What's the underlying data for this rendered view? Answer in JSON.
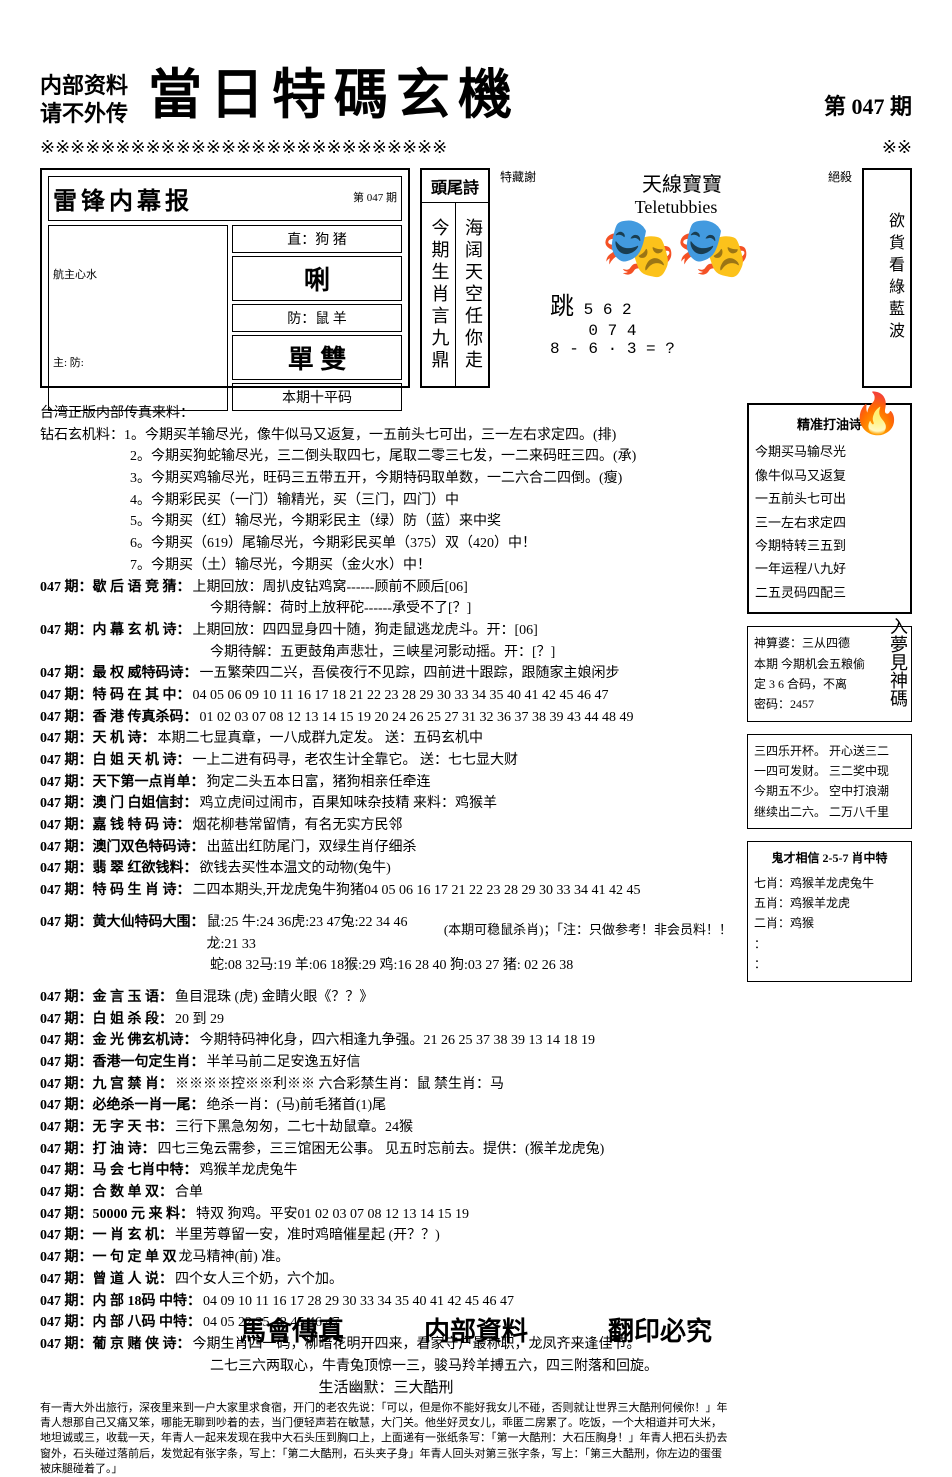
{
  "header": {
    "left_line1": "内部资料",
    "left_line2": "请不外传",
    "title": "當日特碼玄機",
    "issue": "第 047 期",
    "divider": "※※※※※※※※※※※※※※※※※※※※※※※※※※※",
    "divider_right": "※※"
  },
  "newspaper": {
    "title": "雷锋内幕报",
    "issue_label": "第\n047\n期",
    "big_char": "唎",
    "sub1": "直：狗   猪",
    "sub2": "防：鼠   羊",
    "double": "單 雙",
    "left_row1": "航主心水",
    "left_row2": "主:        防:",
    "bottom": "本期十平码"
  },
  "poem": {
    "title": "頭尾詩",
    "col1": "今期生肖言九鼎",
    "col2": "海阔天空任你走"
  },
  "teletubbies": {
    "top1": "特藏謝",
    "top2": "天線寶寶",
    "brand": "Teletubbies",
    "nums_label": "跳",
    "nums1": "5 6 2",
    "nums2": "0 7 4",
    "nums3": "8 - 6 · 3 = ?",
    "side": "絕殺",
    "right_vertical": "欲貨看綠藍波"
  },
  "source": "台湾正版内部传真来料：",
  "diamond_label": "钻石玄机料：",
  "diamond": [
    "1。今期买羊输尽光，像牛似马又返复，一五前头七可出，三一左右求定四。(排)",
    "2。今期买狗蛇输尽光，三二倒头取四七，尾取二零三七发，一二来码旺三四。(承)",
    "3。今期买鸡输尽光，旺码三五带五开，今期特码取单数，一二六合二四倒。(瘦)",
    "4。今期彩民买（一门）输精光，买（三门，四门）中",
    "5。今期买（红）输尽光，今期彩民主（绿）防（蓝）来中奖",
    "6。今期买（619）尾输尽光，今期彩民买单（375）双（420）中！",
    "7。今期买（土）输尽光，今期买（金火水）中！"
  ],
  "entries": [
    {
      "prefix": "047 期：歇 后 语 竞 猜：",
      "text": "上期回放：周扒皮钻鸡窝------顾前不顾后[06]"
    },
    {
      "prefix": "",
      "text": "今期待解：荷时上放秤砣------承受不了[？]"
    },
    {
      "prefix": "047 期：内 幕 玄 机 诗：",
      "text": "上期回放：四四显身四十随，狗走鼠逃龙虎斗。开：[06]"
    },
    {
      "prefix": "",
      "text": "今期待解：五更鼓角声悲壮，三峡星河影动摇。开：[？]"
    },
    {
      "prefix": "047 期：最 权 威特码诗：",
      "text": "一五繁荣四二兴，吾侯夜行不见踪，四前进十跟踪，跟随家主娘闲步"
    },
    {
      "prefix": "047 期：特 码 在 其 中：",
      "text": "04 05 06 09 10 11 16 17 18 21 22 23 28 29 30 33 34 35 40 41 42 45 46 47"
    },
    {
      "prefix": "047 期：香 港 传真杀码：",
      "text": "01 02 03 07 08 12 13 14 15 19 20 24 26 25 27 31 32 36 37 38 39 43 44 48 49"
    },
    {
      "prefix": "047 期：天    机    诗：",
      "text": "本期二七显真章，一八成群九定发。 送：五码玄机中"
    },
    {
      "prefix": "047 期：白 姐 天 机 诗：",
      "text": "一上二进有码寻，老农生计全靠它。 送：七七显大财"
    },
    {
      "prefix": "047 期：天下第一点肖单：",
      "text": "狗定二头五本日富，猪狗相亲任牵连"
    },
    {
      "prefix": "047 期：澳 门 白姐信封：",
      "text": "鸡立虎间过闹市，百果知味杂技精   来料：鸡猴羊"
    },
    {
      "prefix": "047 期：嘉 钱 特 码 诗：",
      "text": "烟花柳巷常留情，有名无实方民邻"
    },
    {
      "prefix": "047 期：澳门双色特码诗：",
      "text": "出蓝出红防尾门，双绿生肖仔细杀"
    },
    {
      "prefix": "047 期：翡 翠 红欲钱料：",
      "text": "欲钱去买性本温文的动物(兔牛)"
    },
    {
      "prefix": "047 期：特 码 生 肖 诗：",
      "text": "二四本期头,开龙虎兔牛狗猪04 05 06 16 17 21 22 23 28 29 30 33 34  41 42 45"
    }
  ],
  "zodiac": {
    "prefix": "047 期：黄大仙特码大围：",
    "row1": "鼠:25  牛:24 36虎:23 47兔:22 34 46 龙:21 33",
    "row2": "蛇:08 32马:19 羊:06 18猴:29 鸡:16 28 40 狗:03 27  猪: 02 26 38",
    "note": "(本期可稳鼠杀肖)；「注：只做参考！非会员料！！"
  },
  "entries2": [
    {
      "prefix": "047 期：金 言 玉   语：",
      "text": "鱼目混珠 (虎) 金睛火眼《？？》"
    },
    {
      "prefix": "047 期：白   姐 杀  段：",
      "text": "20  到  29"
    },
    {
      "prefix": "047 期：金 光 佛玄机诗：",
      "text": "今期特码神化身，四六相逢九争强。21 26 25 37 38 39 13 14 18 19"
    },
    {
      "prefix": "047 期：香港一句定生肖：",
      "text": "半羊马前二足安逸五好信"
    },
    {
      "prefix": "047 期：九 宫 禁   肖：",
      "text": "※※※※控※※利※※  六合彩禁生肖：鼠  禁生肖：马"
    },
    {
      "prefix": "047 期：必绝杀一肖一尾：",
      "text": "绝杀一肖：(马)前毛猪首(1)尾"
    },
    {
      "prefix": "047 期：无 字 天   书：",
      "text": "三行下黑急匆匆，二七十劫鼠章。24猴"
    },
    {
      "prefix": "047 期：打   油   诗：",
      "text": "四七三兔云需参，三三馆困无公事。   见五时忘前去。提供：(猴羊龙虎兔)"
    },
    {
      "prefix": "047 期：马 会 七肖中特：",
      "text": "鸡猴羊龙虎兔牛"
    },
    {
      "prefix": "047 期：合 数 单   双：",
      "text": "合单"
    },
    {
      "prefix": "047 期：50000 元 来 料：",
      "text": "特双 狗鸡。平安01 02 03 07 08 12 13 14 15 19"
    },
    {
      "prefix": "047 期：一 肖 玄   机：",
      "text": "半里芳尊留一安，准时鸡暗催星起   (开？？)"
    },
    {
      "prefix": "047 期：一 句 定 单 双",
      "text": "         龙马精神(前)   准。"
    },
    {
      "prefix": "047 期：曾 道 人   说：",
      "text": "四个女人三个奶，六个加。"
    },
    {
      "prefix": "047 期：内 部 18码 中特：",
      "text": "04 09 10 11 16 17 28 29 30 33 34 35 40 41 42 45 46 47"
    },
    {
      "prefix": "047 期：内 部 八码 中特：",
      "text": "04 05 22 35 42 45 46 47"
    },
    {
      "prefix": "047 期：葡 京 赌 侠 诗：",
      "text": "今期生肖四一码，柳暗花明开四来，看家守户最称职，龙凤齐来逢佳节。"
    },
    {
      "prefix": "",
      "text": "二七三六两取心，牛青兔顶惊一三，骏马羚羊搏五六，四三附落和回旋。"
    }
  ],
  "right_boxes": {
    "box1_title": "精准打油诗",
    "box1_lines": [
      "今期买马输尽光",
      "像牛似马又返复",
      "一五前头七可出",
      "三一左右求定四",
      "今期特转三五到",
      "一年运程八九好",
      "二五灵码四配三"
    ],
    "box2_lines": [
      "神算婆：三从四德",
      "本期  今期机会五粮偷",
      "定 3 6 合码，不离",
      "密码：2457"
    ],
    "box3_lines": [
      "三四乐开杯。 开心送三二",
      "一四可发财。 三二奖中现",
      "今期五不少。 空中打浪潮",
      "继续出二六。 二万八千里"
    ],
    "box4_title": "鬼才相信 2-5-7 肖中特",
    "box4_lines": [
      "七肖：鸡猴羊龙虎兔牛",
      "五肖：鸡猴羊龙虎",
      "二肖：鸡猴",
      "：",
      "："
    ],
    "shen_label": "入夢見神碼"
  },
  "joke": {
    "title": "生活幽默：三大酷刑",
    "text": "有一青大外出旅行，深夜里来到一户大家里求食宿，开门的老农先说：「可以，但是你不能好我女儿不碰，否则就让世界三大酷刑何候你！」年青人想那自己又痛又笨，哪能无聊到吵着的去，当门便轻声若在敏慧，大门关。他坐好灵女儿，乖匿二房累了。吃饭，一个大相道并可大米，地坦诚或三，收载一天，年青人一起来发现在我中大石头压到胸口上，上面递有一张纸条写：「第一大酷刑：大石压胸身！」年青人把石头扔去窗外，石头碰过落前后，发觉起有张字条，写上：「第二大酷刑，石头夹子身」年青人回头对第三张字条，写上：「第三大酷刑，你左边的蛋蛋被床腿碰着了。」"
  },
  "footer": {
    "f1": "馬會傳真",
    "f2": "内部資料",
    "f3": "翻印必究"
  }
}
